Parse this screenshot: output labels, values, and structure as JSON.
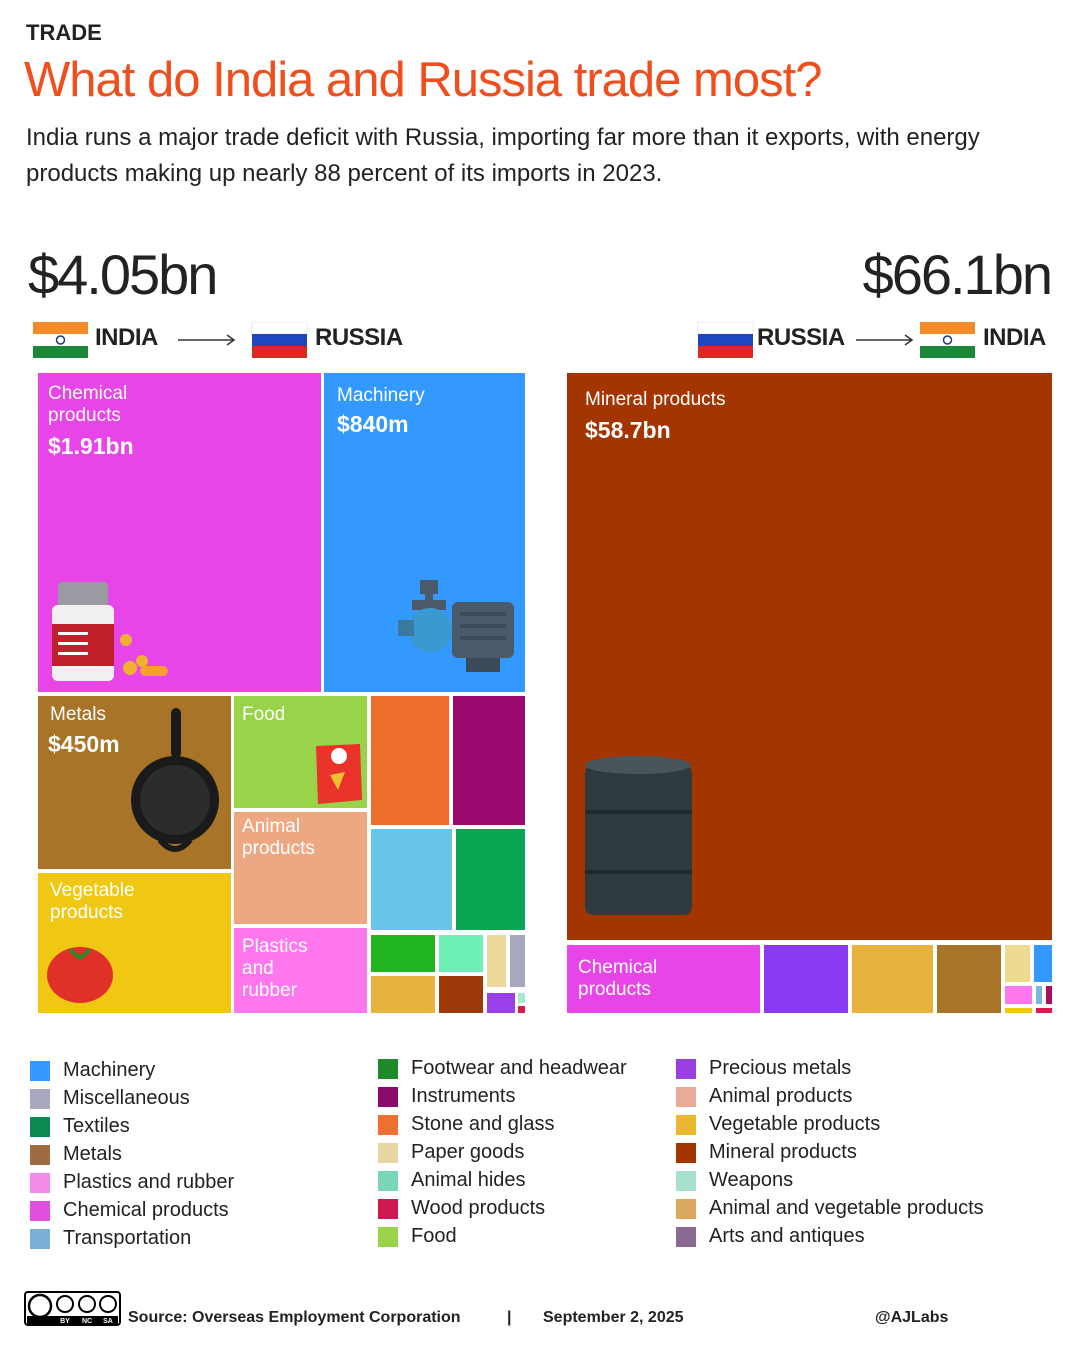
{
  "header": {
    "kicker": "TRADE",
    "title": "What do India and Russia trade most?",
    "subtitle": "India runs a major trade deficit with Russia, importing far more than it exports, with energy products making up nearly 88 percent of its imports in 2023."
  },
  "exports": {
    "total": "$4.05bn",
    "from": "INDIA",
    "to": "RUSSIA",
    "tiles": [
      {
        "label": "Chemical products",
        "value": "$1.91bn"
      },
      {
        "label": "Machinery",
        "value": "$840m"
      },
      {
        "label": "Metals",
        "value": "$450m"
      },
      {
        "label": "Food"
      },
      {
        "label": "Animal products"
      },
      {
        "label": "Vegetable products"
      },
      {
        "label": "Plastics and rubber"
      }
    ]
  },
  "imports": {
    "total": "$66.1bn",
    "from": "RUSSIA",
    "to": "INDIA",
    "tiles": [
      {
        "label": "Mineral products",
        "value": "$58.7bn"
      },
      {
        "label": "Chemical products"
      }
    ]
  },
  "legend": [
    {
      "name": "Machinery",
      "color": "#3399ff"
    },
    {
      "name": "Miscellaneous",
      "color": "#a7a7bf"
    },
    {
      "name": "Textiles",
      "color": "#0a8a52"
    },
    {
      "name": "Metals",
      "color": "#a06a40"
    },
    {
      "name": "Plastics and rubber",
      "color": "#f58ae8"
    },
    {
      "name": "Chemical products",
      "color": "#e050e0"
    },
    {
      "name": "Transportation",
      "color": "#7ab0d8"
    },
    {
      "name": "Footwear and headwear",
      "color": "#1f8a2a"
    },
    {
      "name": "Instruments",
      "color": "#8a0a6a"
    },
    {
      "name": "Stone and glass",
      "color": "#f07030"
    },
    {
      "name": "Paper goods",
      "color": "#e8d4a0"
    },
    {
      "name": "Animal hides",
      "color": "#7ad6b8"
    },
    {
      "name": "Wood products",
      "color": "#d01850"
    },
    {
      "name": "Food",
      "color": "#99d34a"
    },
    {
      "name": "Precious metals",
      "color": "#9a40e0"
    },
    {
      "name": "Animal products",
      "color": "#eaaa98"
    },
    {
      "name": "Vegetable products",
      "color": "#eab830"
    },
    {
      "name": "Mineral products",
      "color": "#a33500"
    },
    {
      "name": "Weapons",
      "color": "#a8e0d0"
    },
    {
      "name": "Animal and vegetable products",
      "color": "#d8a860"
    },
    {
      "name": "Arts and antiques",
      "color": "#8a6a90"
    }
  ],
  "footer": {
    "source": "Source:  Overseas Employment Corporation",
    "separator": "|",
    "date": "September 2, 2025",
    "credit": "@AJLabs",
    "license": [
      "BY",
      "NC",
      "SA"
    ]
  }
}
